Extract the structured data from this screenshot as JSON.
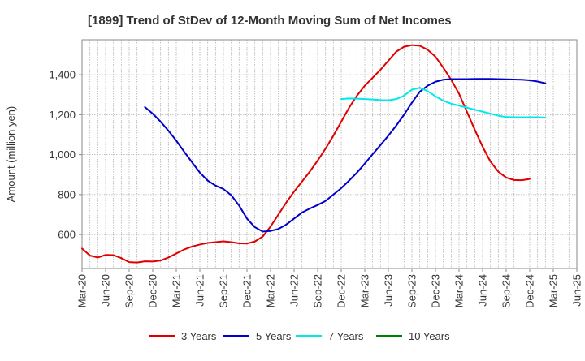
{
  "chart_data": {
    "type": "line",
    "title": "[1899]  Trend of StDev of 12-Month Moving Sum of Net Incomes",
    "xlabel": "",
    "ylabel": "Amount (million yen)",
    "grid": true,
    "legend_position": "bottom",
    "ylim": [
      430,
      1575
    ],
    "y_ticks": [
      600,
      800,
      1000,
      1200,
      1400
    ],
    "y_tick_labels": [
      "600",
      "800",
      "1,000",
      "1,200",
      "1,400"
    ],
    "x_ticks": [
      "Mar-20",
      "Jun-20",
      "Sep-20",
      "Dec-20",
      "Mar-21",
      "Jun-21",
      "Sep-21",
      "Dec-21",
      "Mar-22",
      "Jun-22",
      "Sep-22",
      "Dec-22",
      "Mar-23",
      "Jun-23",
      "Sep-23",
      "Dec-23",
      "Mar-24",
      "Jun-24",
      "Sep-24",
      "Dec-24",
      "Mar-25",
      "Jun-25"
    ],
    "series": [
      {
        "name": "3 Years",
        "color": "#e00000",
        "start": "Mar-20",
        "values": [
          530,
          495,
          485,
          498,
          497,
          482,
          462,
          460,
          466,
          465,
          470,
          485,
          505,
          525,
          540,
          550,
          558,
          562,
          566,
          562,
          556,
          555,
          565,
          590,
          640,
          700,
          760,
          815,
          865,
          915,
          970,
          1030,
          1095,
          1165,
          1235,
          1295,
          1345,
          1385,
          1425,
          1470,
          1515,
          1540,
          1548,
          1545,
          1525,
          1490,
          1435,
          1375,
          1305,
          1215,
          1125,
          1040,
          965,
          915,
          885,
          873,
          872,
          878
        ]
      },
      {
        "name": "5 Years",
        "color": "#0000c8",
        "start": "Nov-20",
        "values": [
          1238,
          1205,
          1165,
          1120,
          1070,
          1015,
          962,
          910,
          870,
          845,
          828,
          797,
          745,
          680,
          637,
          615,
          618,
          628,
          650,
          680,
          710,
          730,
          748,
          768,
          800,
          832,
          870,
          910,
          955,
          1002,
          1048,
          1095,
          1145,
          1200,
          1260,
          1315,
          1345,
          1365,
          1375,
          1378,
          1378,
          1378,
          1379,
          1379,
          1379,
          1378,
          1377,
          1376,
          1375,
          1372,
          1366,
          1357
        ]
      },
      {
        "name": "7 Years",
        "color": "#00e8e8",
        "start": "Dec-22",
        "values": [
          1278,
          1281,
          1280,
          1278,
          1276,
          1273,
          1272,
          1278,
          1295,
          1325,
          1335,
          1318,
          1292,
          1270,
          1255,
          1245,
          1235,
          1225,
          1215,
          1205,
          1195,
          1188,
          1187,
          1187,
          1187,
          1187,
          1185
        ]
      },
      {
        "name": "10 Years",
        "color": "#008000",
        "start": "Mar-20",
        "values": []
      }
    ]
  }
}
